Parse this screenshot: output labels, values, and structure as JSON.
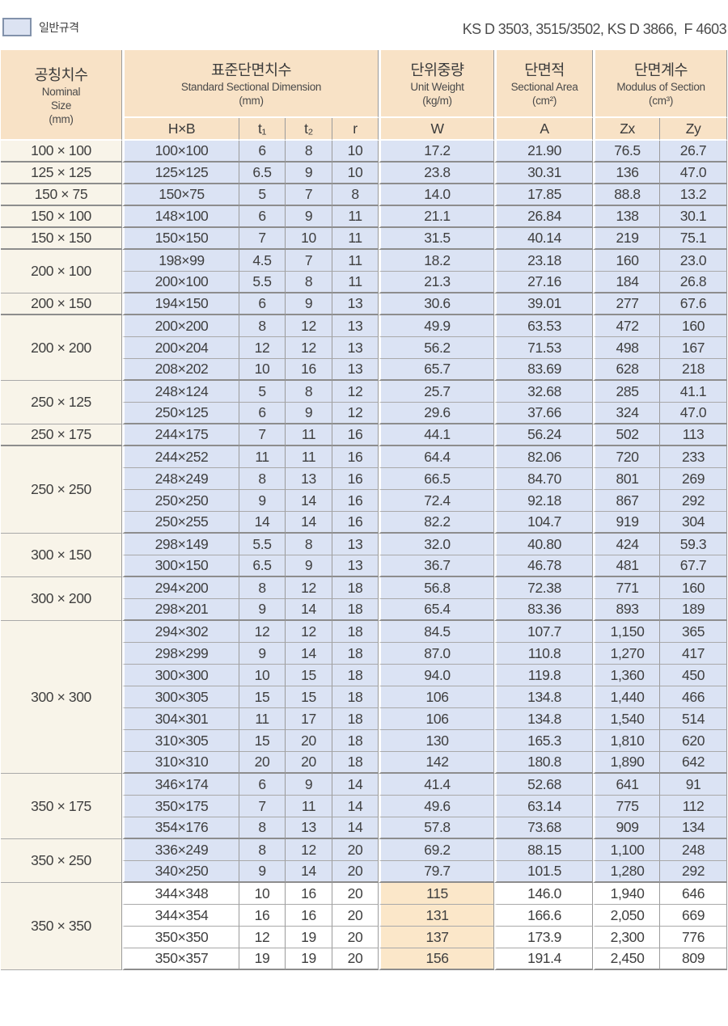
{
  "legend": {
    "label": "일반규격"
  },
  "standards_ref": "KS D 3503, 3515/3502, KS D 3866,  F 4603",
  "colors": {
    "header_bg": "#f8e2c6",
    "cell_blue": "#dbe3f4",
    "nominal_bg": "#f8f4e9",
    "highlight_bg": "#fbe7c9",
    "swatch_fill": "#dce3f2",
    "swatch_border": "#8292ab",
    "grid_line": "#9b9b9b"
  },
  "table": {
    "header": {
      "nominal_ko": "공칭치수",
      "nominal_en1": "Nominal",
      "nominal_en2": "Size",
      "nominal_unit": "(mm)",
      "std_ko": "표준단면치수",
      "std_en": "Standard Sectional Dimension",
      "std_unit": "(mm)",
      "weight_ko": "단위중량",
      "weight_en": "Unit Weight",
      "weight_unit": "(kg/m)",
      "area_ko": "단면적",
      "area_en": "Sectional Area",
      "area_unit": "(cm²)",
      "modulus_ko": "단면계수",
      "modulus_en": "Modulus of Section",
      "modulus_unit": "(cm³)",
      "sub_labels": [
        "H×B",
        "t₁",
        "t₂",
        "r",
        "W",
        "A",
        "Zx",
        "Zy"
      ]
    },
    "groups": [
      {
        "nominal": "100 × 100",
        "rows": [
          [
            "100×100",
            "6",
            "8",
            "10",
            "17.2",
            "21.90",
            "76.5",
            "26.7"
          ]
        ]
      },
      {
        "nominal": "125 × 125",
        "rows": [
          [
            "125×125",
            "6.5",
            "9",
            "10",
            "23.8",
            "30.31",
            "136",
            "47.0"
          ]
        ]
      },
      {
        "nominal": "150 × 75",
        "rows": [
          [
            "150×75",
            "5",
            "7",
            "8",
            "14.0",
            "17.85",
            "88.8",
            "13.2"
          ]
        ]
      },
      {
        "nominal": "150 × 100",
        "rows": [
          [
            "148×100",
            "6",
            "9",
            "11",
            "21.1",
            "26.84",
            "138",
            "30.1"
          ]
        ]
      },
      {
        "nominal": "150 × 150",
        "rows": [
          [
            "150×150",
            "7",
            "10",
            "11",
            "31.5",
            "40.14",
            "219",
            "75.1"
          ]
        ]
      },
      {
        "nominal": "200 × 100",
        "rows": [
          [
            "198×99",
            "4.5",
            "7",
            "11",
            "18.2",
            "23.18",
            "160",
            "23.0"
          ],
          [
            "200×100",
            "5.5",
            "8",
            "11",
            "21.3",
            "27.16",
            "184",
            "26.8"
          ]
        ]
      },
      {
        "nominal": "200 × 150",
        "rows": [
          [
            "194×150",
            "6",
            "9",
            "13",
            "30.6",
            "39.01",
            "277",
            "67.6"
          ]
        ]
      },
      {
        "nominal": "200 × 200",
        "rows": [
          [
            "200×200",
            "8",
            "12",
            "13",
            "49.9",
            "63.53",
            "472",
            "160"
          ],
          [
            "200×204",
            "12",
            "12",
            "13",
            "56.2",
            "71.53",
            "498",
            "167"
          ],
          [
            "208×202",
            "10",
            "16",
            "13",
            "65.7",
            "83.69",
            "628",
            "218"
          ]
        ]
      },
      {
        "nominal": "250 × 125",
        "rows": [
          [
            "248×124",
            "5",
            "8",
            "12",
            "25.7",
            "32.68",
            "285",
            "41.1"
          ],
          [
            "250×125",
            "6",
            "9",
            "12",
            "29.6",
            "37.66",
            "324",
            "47.0"
          ]
        ]
      },
      {
        "nominal": "250 × 175",
        "rows": [
          [
            "244×175",
            "7",
            "11",
            "16",
            "44.1",
            "56.24",
            "502",
            "113"
          ]
        ]
      },
      {
        "nominal": "250 × 250",
        "rows": [
          [
            "244×252",
            "11",
            "11",
            "16",
            "64.4",
            "82.06",
            "720",
            "233"
          ],
          [
            "248×249",
            "8",
            "13",
            "16",
            "66.5",
            "84.70",
            "801",
            "269"
          ],
          [
            "250×250",
            "9",
            "14",
            "16",
            "72.4",
            "92.18",
            "867",
            "292"
          ],
          [
            "250×255",
            "14",
            "14",
            "16",
            "82.2",
            "104.7",
            "919",
            "304"
          ]
        ]
      },
      {
        "nominal": "300 × 150",
        "rows": [
          [
            "298×149",
            "5.5",
            "8",
            "13",
            "32.0",
            "40.80",
            "424",
            "59.3"
          ],
          [
            "300×150",
            "6.5",
            "9",
            "13",
            "36.7",
            "46.78",
            "481",
            "67.7"
          ]
        ]
      },
      {
        "nominal": "300 × 200",
        "rows": [
          [
            "294×200",
            "8",
            "12",
            "18",
            "56.8",
            "72.38",
            "771",
            "160"
          ],
          [
            "298×201",
            "9",
            "14",
            "18",
            "65.4",
            "83.36",
            "893",
            "189"
          ]
        ]
      },
      {
        "nominal": "300 × 300",
        "rows": [
          [
            "294×302",
            "12",
            "12",
            "18",
            "84.5",
            "107.7",
            "1,150",
            "365"
          ],
          [
            "298×299",
            "9",
            "14",
            "18",
            "87.0",
            "110.8",
            "1,270",
            "417"
          ],
          [
            "300×300",
            "10",
            "15",
            "18",
            "94.0",
            "119.8",
            "1,360",
            "450"
          ],
          [
            "300×305",
            "15",
            "15",
            "18",
            "106",
            "134.8",
            "1,440",
            "466"
          ],
          [
            "304×301",
            "11",
            "17",
            "18",
            "106",
            "134.8",
            "1,540",
            "514"
          ],
          [
            "310×305",
            "15",
            "20",
            "18",
            "130",
            "165.3",
            "1,810",
            "620"
          ],
          [
            "310×310",
            "20",
            "20",
            "18",
            "142",
            "180.8",
            "1,890",
            "642"
          ]
        ]
      },
      {
        "nominal": "350 × 175",
        "rows": [
          [
            "346×174",
            "6",
            "9",
            "14",
            "41.4",
            "52.68",
            "641",
            "91"
          ],
          [
            "350×175",
            "7",
            "11",
            "14",
            "49.6",
            "63.14",
            "775",
            "112"
          ],
          [
            "354×176",
            "8",
            "13",
            "14",
            "57.8",
            "73.68",
            "909",
            "134"
          ]
        ]
      },
      {
        "nominal": "350 × 250",
        "rows": [
          [
            "336×249",
            "8",
            "12",
            "20",
            "69.2",
            "88.15",
            "1,100",
            "248"
          ],
          [
            "340×250",
            "9",
            "14",
            "20",
            "79.7",
            "101.5",
            "1,280",
            "292"
          ]
        ]
      },
      {
        "nominal": "350 × 350",
        "highlight_w": true,
        "rows": [
          [
            "344×348",
            "10",
            "16",
            "20",
            "115",
            "146.0",
            "1,940",
            "646"
          ],
          [
            "344×354",
            "16",
            "16",
            "20",
            "131",
            "166.6",
            "2,050",
            "669"
          ],
          [
            "350×350",
            "12",
            "19",
            "20",
            "137",
            "173.9",
            "2,300",
            "776"
          ],
          [
            "350×357",
            "19",
            "19",
            "20",
            "156",
            "191.4",
            "2,450",
            "809"
          ]
        ]
      }
    ]
  }
}
